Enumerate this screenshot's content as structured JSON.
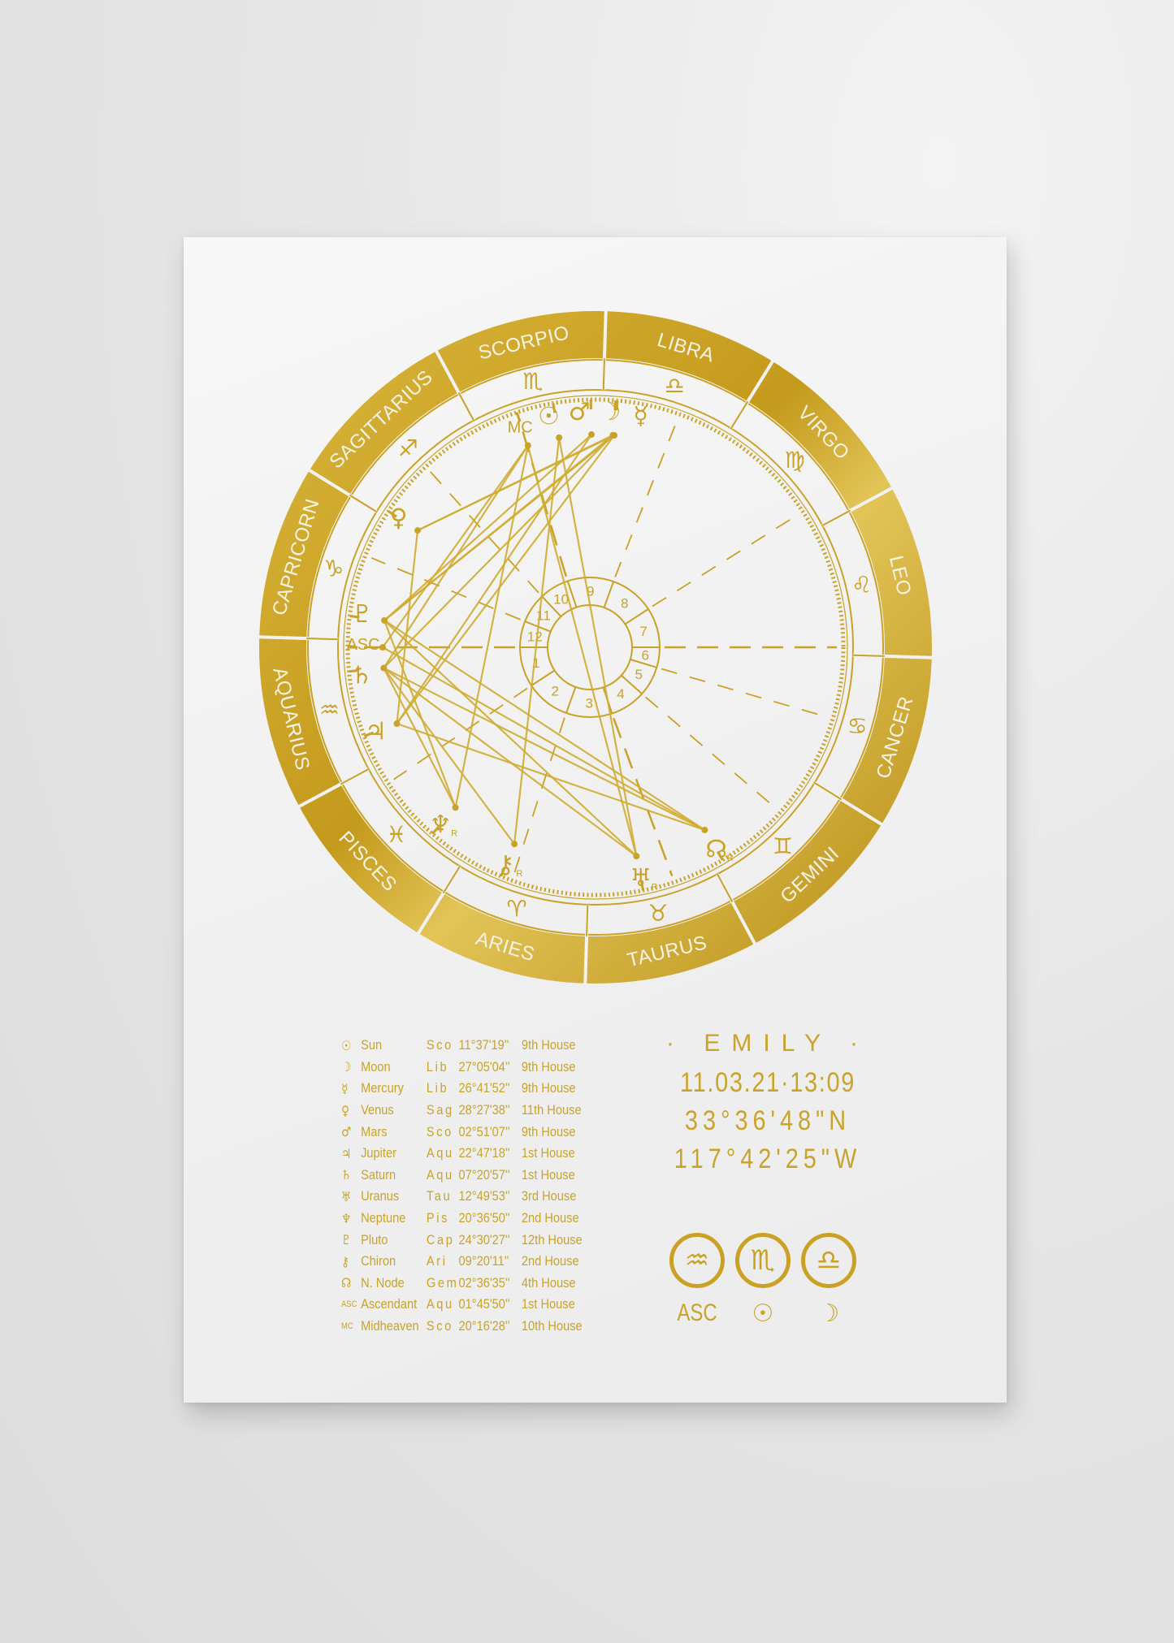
{
  "colors": {
    "gold": "#c9a227",
    "gold_dark": "#b8901a",
    "paper": "#f2f2f2",
    "background": "#e4e4e4"
  },
  "chart_data": {
    "type": "natal-wheel",
    "signs": [
      {
        "name": "ARIES",
        "glyph": "♈"
      },
      {
        "name": "TAURUS",
        "glyph": "♉"
      },
      {
        "name": "GEMINI",
        "glyph": "♊"
      },
      {
        "name": "CANCER",
        "glyph": "♋"
      },
      {
        "name": "LEO",
        "glyph": "♌"
      },
      {
        "name": "VIRGO",
        "glyph": "♍"
      },
      {
        "name": "LIBRA",
        "glyph": "♎"
      },
      {
        "name": "SCORPIO",
        "glyph": "♏"
      },
      {
        "name": "SAGITTARIUS",
        "glyph": "♐"
      },
      {
        "name": "CAPRICORN",
        "glyph": "♑"
      },
      {
        "name": "AQUARIUS",
        "glyph": "♒"
      },
      {
        "name": "PISCES",
        "glyph": "♓"
      }
    ],
    "ascendant_longitude": 301.76,
    "house_cusps": [
      301.76,
      335,
      12,
      50.27,
      80,
      105,
      121.76,
      155,
      192,
      230.27,
      255,
      280
    ],
    "house_numbers": [
      "1",
      "2",
      "3",
      "4",
      "5",
      "6",
      "7",
      "8",
      "9",
      "10",
      "11",
      "12"
    ],
    "points": [
      {
        "key": "sun",
        "glyph": "☉",
        "longitude": 221.62
      },
      {
        "key": "moon",
        "glyph": "☽",
        "longitude": 207.08
      },
      {
        "key": "mercury",
        "glyph": "☿",
        "longitude": 206.7
      },
      {
        "key": "venus",
        "glyph": "♀",
        "longitude": 268.46
      },
      {
        "key": "mars",
        "glyph": "♂",
        "longitude": 212.85
      },
      {
        "key": "jupiter",
        "glyph": "♃",
        "longitude": 322.79
      },
      {
        "key": "saturn",
        "glyph": "♄",
        "longitude": 307.35
      },
      {
        "key": "uranus",
        "glyph": "♅",
        "longitude": 42.83,
        "retro": "R"
      },
      {
        "key": "neptune",
        "glyph": "♆",
        "longitude": 350.61,
        "retro": "R"
      },
      {
        "key": "pluto",
        "glyph": "♇",
        "longitude": 294.51
      },
      {
        "key": "chiron",
        "glyph": "⚷",
        "longitude": 9.34,
        "retro": "R"
      },
      {
        "key": "node",
        "glyph": "☊",
        "longitude": 62.61,
        "retro": "R"
      },
      {
        "key": "asc",
        "glyph": "ASC",
        "longitude": 301.76
      },
      {
        "key": "mc",
        "glyph": "MC",
        "longitude": 230.27
      }
    ],
    "aspects": [
      [
        "venus",
        "moon"
      ],
      [
        "venus",
        "mercury"
      ],
      [
        "venus",
        "jupiter"
      ],
      [
        "moon",
        "mercury"
      ],
      [
        "mc",
        "saturn"
      ],
      [
        "mc",
        "neptune"
      ],
      [
        "mc",
        "uranus"
      ],
      [
        "mc",
        "asc"
      ],
      [
        "sun",
        "uranus"
      ],
      [
        "sun",
        "chiron"
      ],
      [
        "mars",
        "pluto"
      ],
      [
        "moon",
        "pluto"
      ],
      [
        "mercury",
        "pluto"
      ],
      [
        "moon",
        "saturn"
      ],
      [
        "mercury",
        "jupiter"
      ],
      [
        "mars",
        "jupiter"
      ],
      [
        "pluto",
        "node"
      ],
      [
        "saturn",
        "node"
      ],
      [
        "asc",
        "node"
      ],
      [
        "pluto",
        "uranus"
      ],
      [
        "saturn",
        "uranus"
      ],
      [
        "jupiter",
        "node"
      ],
      [
        "neptune",
        "pluto"
      ],
      [
        "neptune",
        "saturn"
      ],
      [
        "chiron",
        "saturn"
      ]
    ]
  },
  "table": [
    {
      "glyph": "☉",
      "name": "Sun",
      "sign": "Sco",
      "degree": "11°37'19''",
      "house": "9th House"
    },
    {
      "glyph": "☽",
      "name": "Moon",
      "sign": "Lib",
      "degree": "27°05'04''",
      "house": "9th House"
    },
    {
      "glyph": "☿",
      "name": "Mercury",
      "sign": "Lib",
      "degree": "26°41'52''",
      "house": "9th House"
    },
    {
      "glyph": "♀",
      "name": "Venus",
      "sign": "Sag",
      "degree": "28°27'38''",
      "house": "11th House"
    },
    {
      "glyph": "♂",
      "name": "Mars",
      "sign": "Sco",
      "degree": "02°51'07''",
      "house": "9th House"
    },
    {
      "glyph": "♃",
      "name": "Jupiter",
      "sign": "Aqu",
      "degree": "22°47'18''",
      "house": "1st House"
    },
    {
      "glyph": "♄",
      "name": "Saturn",
      "sign": "Aqu",
      "degree": "07°20'57''",
      "house": "1st House"
    },
    {
      "glyph": "♅",
      "name": "Uranus",
      "sign": "Tau",
      "degree": "12°49'53''",
      "house": "3rd House"
    },
    {
      "glyph": "♆",
      "name": "Neptune",
      "sign": "Pis",
      "degree": "20°36'50''",
      "house": "2nd House"
    },
    {
      "glyph": "♇",
      "name": "Pluto",
      "sign": "Cap",
      "degree": "24°30'27''",
      "house": "12th House"
    },
    {
      "glyph": "⚷",
      "name": "Chiron",
      "sign": "Ari",
      "degree": "09°20'11''",
      "house": "2nd House"
    },
    {
      "glyph": "☊",
      "name": "N. Node",
      "sign": "Gem",
      "degree": "02°36'35''",
      "house": "4th House"
    },
    {
      "glyph": "ASC",
      "name": "Ascendant",
      "sign": "Aqu",
      "degree": "01°45'50''",
      "house": "1st House"
    },
    {
      "glyph": "MC",
      "name": "Midheaven",
      "sign": "Sco",
      "degree": "20°16'28''",
      "house": "10th House"
    }
  ],
  "info": {
    "name": "· EMILY ·",
    "datetime": "11.03.21·13:09",
    "latitude": "33°36'48\"N",
    "longitude": "117°42'25\"W"
  },
  "big_three": [
    {
      "sign_glyph": "♒",
      "label": "ASC"
    },
    {
      "sign_glyph": "♏",
      "label": "☉"
    },
    {
      "sign_glyph": "♎",
      "label": "☽"
    }
  ]
}
